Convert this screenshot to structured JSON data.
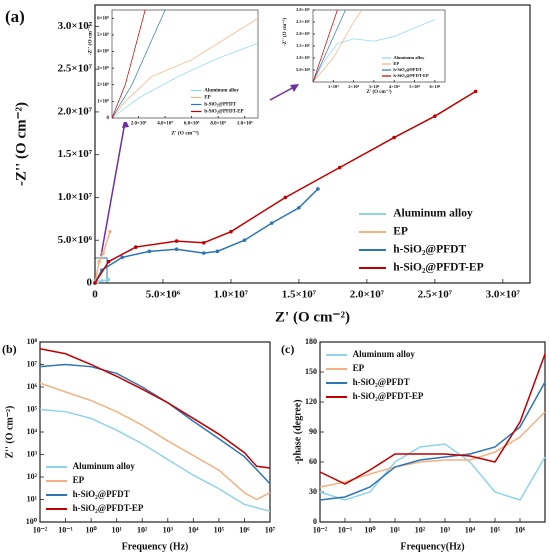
{
  "chart_data": [
    {
      "type": "line",
      "panel_label": "(a)",
      "xlabel": "Z' (O cm⁻²)",
      "ylabel": "-Z'' (O cm⁻²)",
      "xlim": [
        0,
        32000000
      ],
      "ylim": [
        0,
        32500000
      ],
      "xticks": [
        0,
        {
          "value": 5000000,
          "label": "5.0×10⁶"
        },
        {
          "value": 10000000,
          "label": "1.0×10⁷"
        },
        {
          "value": 15000000,
          "label": "1.5×10⁷"
        },
        {
          "value": 20000000,
          "label": "2.0×10⁷"
        },
        {
          "value": 25000000,
          "label": "2.5×10⁷"
        },
        {
          "value": 30000000,
          "label": "3.0×10⁷"
        }
      ],
      "yticks": [
        0,
        {
          "value": 5000000,
          "label": "5.0×10⁶"
        },
        {
          "value": 10000000,
          "label": "1.0×10⁷"
        },
        {
          "value": 15000000,
          "label": "1.5×10⁷"
        },
        {
          "value": 20000000,
          "label": "2.0×10⁷"
        },
        {
          "value": 25000000,
          "label": "2.5×10⁷"
        },
        {
          "value": 30000000,
          "label": "3.0×10⁷"
        }
      ],
      "legend": "lower right",
      "markers": true,
      "series": [
        {
          "name": "Aluminum alloy",
          "color": "#8fd3e8",
          "x": [
            0,
            200000,
            500000,
            1000000
          ],
          "values": [
            0,
            150000,
            250000,
            400000
          ]
        },
        {
          "name": "EP",
          "color": "#f4b183",
          "x": [
            0,
            300000,
            600000,
            1100000
          ],
          "values": [
            0,
            2500000,
            3500000,
            6000000
          ]
        },
        {
          "name": "h-SiO₂@PFDT",
          "color": "#2e75b6",
          "x": [
            0,
            500000,
            2000000,
            4000000,
            6000000,
            8000000,
            9000000,
            11000000,
            13000000,
            15000000,
            16400000
          ],
          "values": [
            0,
            1500000,
            3000000,
            3700000,
            3950000,
            3500000,
            3700000,
            5000000,
            7000000,
            8800000,
            11000000
          ]
        },
        {
          "name": "h-SiO₂@PFDT-EP",
          "color": "#c00000",
          "x": [
            0,
            1000000,
            3000000,
            6000000,
            8000000,
            10000000,
            14000000,
            18000000,
            22000000,
            25000000,
            28000000
          ],
          "values": [
            0,
            2500000,
            4200000,
            4900000,
            4700000,
            6000000,
            10000000,
            13500000,
            17000000,
            19500000,
            22400000
          ]
        }
      ]
    },
    {
      "type": "line",
      "xlabel": "Z' (O cm⁻²)",
      "ylabel": "-Z'' (O cm⁻²)",
      "xlim": [
        0,
        1100000
      ],
      "ylim": [
        0,
        6500000
      ],
      "xticks": [
        {
          "value": 200000,
          "label": "2.0×10⁵"
        },
        {
          "value": 400000,
          "label": "4.0×10⁵"
        },
        {
          "value": 600000,
          "label": "6.0×10⁵"
        },
        {
          "value": 800000,
          "label": "8.0×10⁵"
        },
        {
          "value": 1000000,
          "label": "1.0×10⁶"
        }
      ],
      "yticks": [
        0,
        {
          "value": 1000000,
          "label": "1×10⁶"
        },
        {
          "value": 2000000,
          "label": "2×10⁶"
        },
        {
          "value": 3000000,
          "label": "3×10⁶"
        },
        {
          "value": 4000000,
          "label": "4×10⁶"
        },
        {
          "value": 5000000,
          "label": "5×10⁶"
        },
        {
          "value": 6000000,
          "label": "6×10⁶"
        }
      ],
      "legend": "lower right",
      "series": [
        {
          "name": "Aluminum alloy",
          "color": "#8fd3e8",
          "x": [
            0,
            200000,
            500000,
            800000,
            1100000
          ],
          "values": [
            0,
            1200000,
            2500000,
            3600000,
            4500000
          ]
        },
        {
          "name": "EP",
          "color": "#f4b183",
          "x": [
            0,
            100000,
            300000,
            600000,
            900000,
            1100000
          ],
          "values": [
            0,
            1000000,
            2500000,
            3500000,
            5000000,
            6000000
          ]
        },
        {
          "name": "h-SiO₂@PFDT",
          "color": "#2e75b6",
          "x": [
            0,
            150000,
            400000
          ],
          "values": [
            0,
            2000000,
            6500000
          ]
        },
        {
          "name": "h-SiO₂@PFDT-EP",
          "color": "#c00000",
          "x": [
            0,
            100000,
            250000
          ],
          "values": [
            0,
            2000000,
            6500000
          ]
        }
      ]
    },
    {
      "type": "line",
      "xlabel": "Z' (O cm⁻²)",
      "ylabel": "-Z'' (O cm⁻²)",
      "xlim": [
        0,
        65000
      ],
      "ylim": [
        0,
        300000
      ],
      "xticks": [
        {
          "value": 10000,
          "label": "1×10⁴"
        },
        {
          "value": 20000,
          "label": "2×10⁴"
        },
        {
          "value": 30000,
          "label": "3×10⁴"
        },
        {
          "value": 40000,
          "label": "4×10⁴"
        },
        {
          "value": 50000,
          "label": "5×10⁴"
        },
        {
          "value": 60000,
          "label": "6×10⁴"
        }
      ],
      "yticks": [
        {
          "value": 50000,
          "label": "5.0×10⁴"
        },
        {
          "value": 100000,
          "label": "1.0×10⁵"
        },
        {
          "value": 150000,
          "label": "1.5×10⁵"
        },
        {
          "value": 200000,
          "label": "2.0×10⁵"
        },
        {
          "value": 250000,
          "label": "2.5×10⁵"
        },
        {
          "value": 300000,
          "label": "3.0×10⁵"
        }
      ],
      "legend": "lower right",
      "series": [
        {
          "name": "Aluminum alloy",
          "color": "#8fd3e8",
          "x": [
            0,
            5000,
            12000,
            20000,
            30000,
            40000,
            60000
          ],
          "values": [
            0,
            80000,
            160000,
            180000,
            170000,
            190000,
            260000
          ]
        },
        {
          "name": "EP",
          "color": "#f4b183",
          "x": [
            0,
            10000,
            20000,
            24000
          ],
          "values": [
            0,
            100000,
            250000,
            300000
          ]
        },
        {
          "name": "h-SiO₂@PFDT",
          "color": "#2e75b6",
          "x": [
            0,
            16000
          ],
          "values": [
            0,
            300000
          ]
        },
        {
          "name": "h-SiO₂@PFDT-EP",
          "color": "#c00000",
          "x": [
            0,
            12000
          ],
          "values": [
            0,
            300000
          ]
        }
      ]
    },
    {
      "type": "line",
      "panel_label": "(b)",
      "xlabel": "Frequency (Hz)",
      "ylabel": "Z'' (O cm⁻²)",
      "xlog": true,
      "ylog": true,
      "xlim": [
        0.01,
        10000000
      ],
      "ylim": [
        1,
        100000000
      ],
      "xticks": [
        {
          "value": 0.01,
          "label": "10⁻²"
        },
        {
          "value": 0.1,
          "label": "10⁻¹"
        },
        {
          "value": 1,
          "label": "10⁰"
        },
        {
          "value": 10,
          "label": "10¹"
        },
        {
          "value": 100,
          "label": "10²"
        },
        {
          "value": 1000,
          "label": "10³"
        },
        {
          "value": 10000,
          "label": "10⁴"
        },
        {
          "value": 100000,
          "label": "10⁵"
        },
        {
          "value": 1000000,
          "label": "10⁶"
        },
        {
          "value": 10000000,
          "label": "10⁷"
        }
      ],
      "yticks": [
        {
          "value": 1,
          "label": "10⁰"
        },
        {
          "value": 10,
          "label": "10¹"
        },
        {
          "value": 100,
          "label": "10²"
        },
        {
          "value": 1000,
          "label": "10³"
        },
        {
          "value": 10000,
          "label": "10⁴"
        },
        {
          "value": 100000,
          "label": "10⁵"
        },
        {
          "value": 1000000,
          "label": "10⁶"
        },
        {
          "value": 10000000,
          "label": "10⁷"
        },
        {
          "value": 100000000,
          "label": "10⁸"
        }
      ],
      "legend": "lower left",
      "series": [
        {
          "name": "Aluminum alloy",
          "color": "#8fd3e8",
          "x": [
            0.01,
            0.1,
            1,
            10,
            100,
            1000,
            10000,
            100000,
            1000000,
            10000000
          ],
          "values": [
            100000,
            80000,
            40000,
            12000,
            3000,
            600,
            120,
            30,
            6,
            3
          ]
        },
        {
          "name": "EP",
          "color": "#f4b183",
          "x": [
            0.01,
            0.1,
            1,
            10,
            100,
            1000,
            10000,
            100000,
            1000000,
            3000000,
            10000000
          ],
          "values": [
            1500000,
            600000,
            250000,
            80000,
            20000,
            4000,
            900,
            200,
            20,
            10,
            20
          ]
        },
        {
          "name": "h-SiO₂@PFDT",
          "color": "#2e75b6",
          "x": [
            0.01,
            0.1,
            1,
            10,
            100,
            1000,
            10000,
            100000,
            1000000,
            10000000
          ],
          "values": [
            8000000,
            10000000,
            8000000,
            4000000,
            1000000,
            200000,
            30000,
            5000,
            800,
            50
          ]
        },
        {
          "name": "h-SiO₂@PFDT-EP",
          "color": "#c00000",
          "x": [
            0.01,
            0.1,
            1,
            10,
            100,
            1000,
            10000,
            100000,
            1000000,
            3000000,
            10000000
          ],
          "values": [
            50000000,
            30000000,
            10000000,
            3000000,
            800000,
            200000,
            40000,
            8000,
            1200,
            300,
            250
          ]
        }
      ]
    },
    {
      "type": "line",
      "panel_label": "(c)",
      "xlabel": "Frequency(Hz)",
      "ylabel": "-phase (degree)",
      "xlog": true,
      "xlim": [
        0.01,
        10000000
      ],
      "ylim": [
        0,
        180
      ],
      "xticks": [
        {
          "value": 0.01,
          "label": "10⁻²"
        },
        {
          "value": 0.1,
          "label": "10⁻¹"
        },
        {
          "value": 1,
          "label": "10⁰"
        },
        {
          "value": 10,
          "label": "10¹"
        },
        {
          "value": 100,
          "label": "10²"
        },
        {
          "value": 1000,
          "label": "10³"
        },
        {
          "value": 10000,
          "label": "10⁴"
        },
        {
          "value": 100000,
          "label": "10⁵"
        },
        {
          "value": 1000000,
          "label": "10⁶"
        }
      ],
      "yticks": [
        0,
        30,
        60,
        90,
        120,
        150,
        180
      ],
      "legend": "upper left",
      "series": [
        {
          "name": "Aluminum alloy",
          "color": "#8fd3e8",
          "x": [
            0.01,
            0.1,
            1,
            10,
            100,
            1000,
            10000,
            100000,
            1000000,
            10000000
          ],
          "values": [
            30,
            22,
            30,
            60,
            75,
            78,
            60,
            30,
            22,
            65
          ]
        },
        {
          "name": "EP",
          "color": "#f4b183",
          "x": [
            0.01,
            0.1,
            1,
            10,
            100,
            1000,
            10000,
            100000,
            1000000,
            10000000
          ],
          "values": [
            35,
            40,
            48,
            55,
            60,
            62,
            62,
            70,
            85,
            110
          ]
        },
        {
          "name": "h-SiO₂@PFDT",
          "color": "#2e75b6",
          "x": [
            0.01,
            0.1,
            1,
            10,
            100,
            1000,
            10000,
            100000,
            1000000,
            10000000
          ],
          "values": [
            22,
            25,
            35,
            55,
            62,
            65,
            68,
            75,
            95,
            140
          ]
        },
        {
          "name": "h-SiO₂@PFDT-EP",
          "color": "#c00000",
          "x": [
            0.01,
            0.1,
            1,
            10,
            100,
            1000,
            10000,
            100000,
            1000000,
            10000000
          ],
          "values": [
            50,
            38,
            52,
            68,
            68,
            68,
            66,
            60,
            100,
            168
          ]
        }
      ]
    }
  ]
}
